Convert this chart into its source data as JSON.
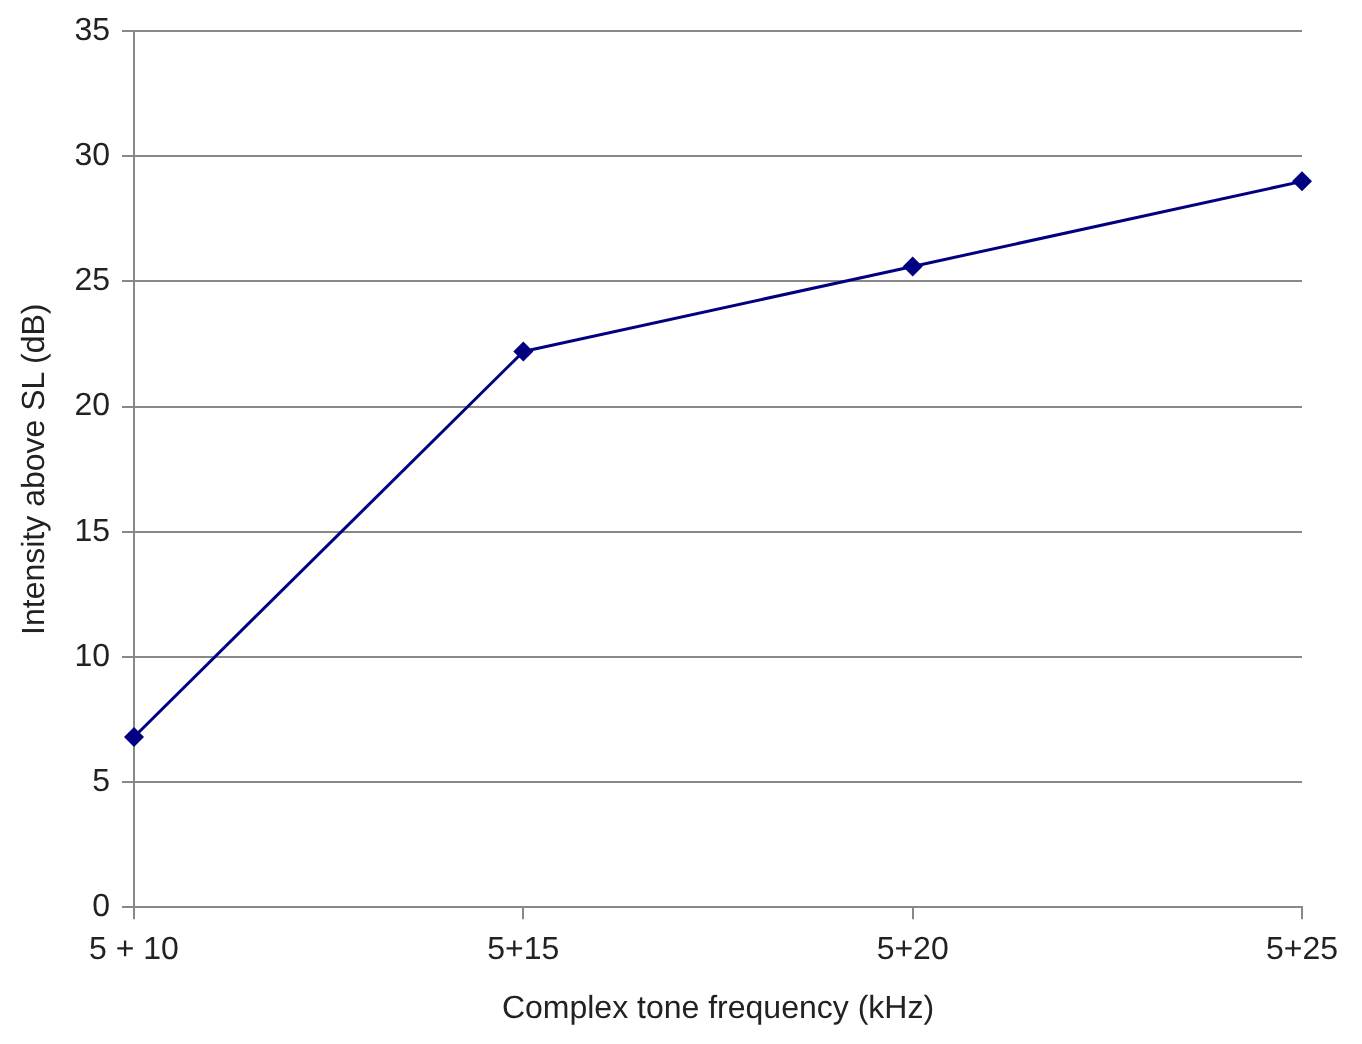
{
  "chart_data": {
    "type": "line",
    "xlabel": "Complex tone frequency (kHz)",
    "ylabel": "Intensity above SL (dB)",
    "categories": [
      "5 + 10",
      "5+15",
      "5+20",
      "5+25"
    ],
    "series": [
      {
        "color": "#000080",
        "values": [
          6.8,
          22.2,
          25.6,
          29
        ]
      }
    ],
    "ylim": [
      0,
      35
    ],
    "yticks": [
      0,
      5,
      10,
      15,
      20,
      25,
      30,
      35
    ],
    "grid": "y",
    "marker": "diamond",
    "line_style": "solid",
    "legend": false
  }
}
